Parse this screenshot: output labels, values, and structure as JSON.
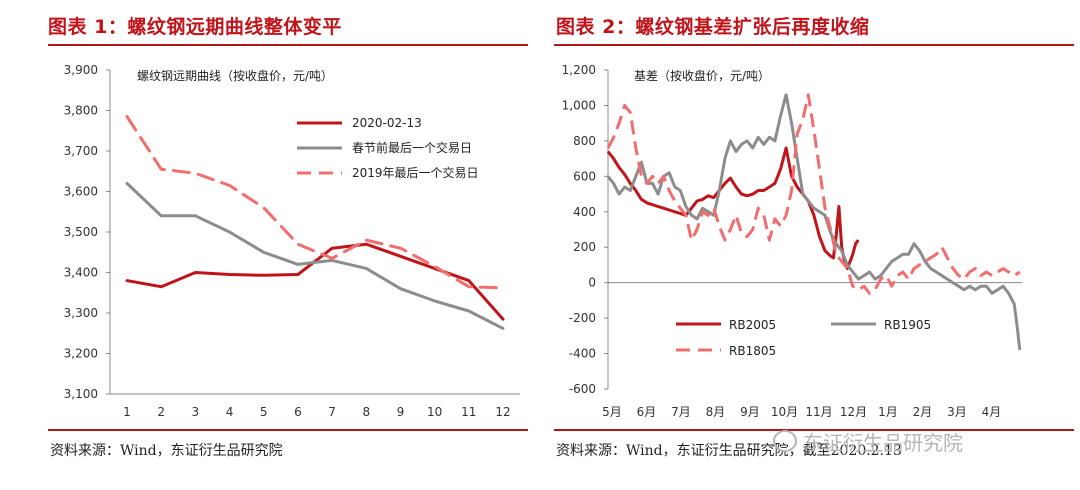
{
  "page": {
    "source_left": "资料来源：Wind，东证衍生品研究院",
    "source_right": "资料来源：Wind，东证衍生品研究院，截至2020.2.13",
    "watermark": "东证衍生品研究院"
  },
  "colors": {
    "title": "#c0141b",
    "rb2005": "#c0141b",
    "rb1905": "#8c8c8c",
    "rb1805": "#f26d6d"
  },
  "chart_data": [
    {
      "type": "line",
      "title": "图表 1：螺纹钢远期曲线整体变平",
      "unit_label": "螺纹钢远期曲线（按收盘价，元/吨）",
      "categories": [
        "1",
        "2",
        "3",
        "4",
        "5",
        "6",
        "7",
        "8",
        "9",
        "10",
        "11",
        "12"
      ],
      "ylim": [
        3100,
        3900
      ],
      "yticks": [
        3100,
        3200,
        3300,
        3400,
        3500,
        3600,
        3700,
        3800,
        3900
      ],
      "ytick_labels": [
        "3,100",
        "3,200",
        "3,300",
        "3,400",
        "3,500",
        "3,600",
        "3,700",
        "3,800",
        "3,900"
      ],
      "grid": false,
      "legend_position": "top-right",
      "series": [
        {
          "name": "2020-02-13",
          "color": "#c0141b",
          "dash": "solid",
          "values": [
            3380,
            3365,
            3400,
            3395,
            3393,
            3395,
            3460,
            3470,
            3440,
            3410,
            3380,
            3285
          ]
        },
        {
          "name": "春节前最后一个交易日",
          "color": "#8c8c8c",
          "dash": "solid",
          "values": [
            3620,
            3540,
            3540,
            3500,
            3450,
            3420,
            3430,
            3410,
            3360,
            3330,
            3305,
            3262
          ]
        },
        {
          "name": "2019年最后一个交易日",
          "color": "#f26d6d",
          "dash": "dashed",
          "values": [
            3785,
            3655,
            3645,
            3615,
            3560,
            3470,
            3435,
            3480,
            3460,
            3415,
            3365,
            3362
          ]
        }
      ]
    },
    {
      "type": "line",
      "title": "图表 2：螺纹钢基差扩张后再度收缩",
      "unit_label": "基差（按收盘价，元/吨）",
      "x_tick_labels": [
        "5月",
        "6月",
        "7月",
        "8月",
        "9月",
        "10月",
        "11月",
        "12月",
        "1月",
        "2月",
        "3月",
        "4月"
      ],
      "ylim": [
        -600,
        1200
      ],
      "yticks": [
        -600,
        -400,
        -200,
        0,
        200,
        400,
        600,
        800,
        1000,
        1200
      ],
      "ytick_labels": [
        "-600",
        "-400",
        "-200",
        "0",
        "200",
        "400",
        "600",
        "800",
        "1,000",
        "1,200"
      ],
      "grid": false,
      "legend_position": "bottom-left",
      "series": [
        {
          "name": "RB2005",
          "color": "#c0141b",
          "dash": "solid",
          "x": [
            0,
            0.2,
            0.4,
            0.6,
            0.8,
            1,
            1.2,
            1.4,
            1.6,
            1.8,
            2,
            2.2,
            2.4,
            2.6,
            2.8,
            3,
            3.2,
            3.4,
            3.6,
            3.8,
            4,
            4.2,
            4.4,
            4.6,
            4.8,
            5,
            5.2,
            5.4,
            5.6,
            5.8,
            6,
            6.2,
            6.4,
            6.6,
            6.8,
            7,
            7.2,
            7.4,
            7.6,
            7.8,
            8,
            8.1,
            8.2,
            8.3,
            8.4,
            8.5,
            8.6,
            8.7,
            8.8,
            8.9,
            9
          ],
          "values": [
            740,
            700,
            650,
            610,
            560,
            520,
            470,
            450,
            440,
            430,
            420,
            410,
            400,
            390,
            380,
            420,
            460,
            470,
            490,
            480,
            520,
            560,
            590,
            540,
            500,
            490,
            500,
            520,
            520,
            540,
            560,
            640,
            760,
            600,
            540,
            500,
            460,
            380,
            260,
            180,
            150,
            140,
            260,
            430,
            200,
            120,
            80,
            120,
            160,
            220,
            240
          ]
        },
        {
          "name": "RB1905",
          "color": "#8c8c8c",
          "dash": "solid",
          "x": [
            0,
            0.2,
            0.4,
            0.6,
            0.8,
            1,
            1.2,
            1.4,
            1.6,
            1.8,
            2,
            2.2,
            2.4,
            2.6,
            2.8,
            3,
            3.2,
            3.4,
            3.6,
            3.8,
            4,
            4.2,
            4.4,
            4.6,
            4.8,
            5,
            5.2,
            5.4,
            5.6,
            5.8,
            6,
            6.2,
            6.4,
            6.6,
            6.8,
            7,
            7.2,
            7.4,
            7.6,
            7.8,
            8,
            8.2,
            8.4,
            8.6,
            8.8,
            9,
            9.2,
            9.4,
            9.6,
            9.8,
            10,
            10.2,
            10.4,
            10.6,
            10.8,
            11,
            11.2,
            11.4,
            11.6,
            11.8,
            12,
            12.2,
            12.4,
            12.6,
            12.8,
            13,
            13.2,
            13.4,
            13.6,
            13.8,
            14,
            14.2,
            14.4,
            14.6,
            14.7,
            14.8
          ],
          "values": [
            600,
            560,
            500,
            540,
            520,
            600,
            680,
            560,
            560,
            500,
            600,
            620,
            540,
            520,
            430,
            380,
            360,
            420,
            400,
            380,
            520,
            700,
            800,
            740,
            780,
            800,
            760,
            820,
            780,
            820,
            800,
            940,
            1060,
            900,
            700,
            500,
            460,
            420,
            400,
            380,
            280,
            220,
            180,
            100,
            60,
            20,
            40,
            60,
            20,
            40,
            80,
            120,
            140,
            160,
            160,
            220,
            180,
            120,
            80,
            60,
            40,
            20,
            0,
            -20,
            -40,
            -20,
            -40,
            -20,
            -20,
            -60,
            -40,
            -20,
            -60,
            -120,
            -240,
            -380
          ]
        },
        {
          "name": "RB1805",
          "color": "#f26d6d",
          "dash": "dashed",
          "x": [
            0,
            0.2,
            0.4,
            0.6,
            0.8,
            1,
            1.2,
            1.4,
            1.6,
            1.8,
            2,
            2.2,
            2.4,
            2.6,
            2.8,
            3,
            3.2,
            3.4,
            3.6,
            3.8,
            4,
            4.2,
            4.4,
            4.6,
            4.8,
            5,
            5.2,
            5.4,
            5.6,
            5.8,
            6,
            6.2,
            6.4,
            6.6,
            6.8,
            7,
            7.2,
            7.4,
            7.6,
            7.8,
            8,
            8.2,
            8.4,
            8.6,
            8.8,
            9,
            9.2,
            9.4,
            9.6,
            9.8,
            10,
            10.2,
            10.4,
            10.6,
            10.8,
            11,
            11.2,
            11.4,
            11.6,
            11.8,
            12,
            12.2,
            12.4,
            12.6,
            12.8,
            13,
            13.2,
            13.4,
            13.6,
            13.8,
            14,
            14.2,
            14.4,
            14.6,
            14.8
          ],
          "values": [
            760,
            820,
            900,
            1000,
            960,
            760,
            600,
            560,
            600,
            560,
            600,
            520,
            460,
            420,
            380,
            240,
            300,
            400,
            380,
            420,
            320,
            240,
            300,
            380,
            280,
            260,
            300,
            420,
            380,
            240,
            360,
            320,
            380,
            520,
            840,
            920,
            1060,
            860,
            640,
            420,
            300,
            160,
            120,
            80,
            -20,
            -40,
            -20,
            -60,
            -40,
            20,
            40,
            -20,
            40,
            60,
            20,
            80,
            100,
            120,
            140,
            160,
            200,
            140,
            80,
            40,
            20,
            60,
            80,
            40,
            60,
            40,
            60,
            80,
            60,
            40,
            60
          ]
        }
      ]
    }
  ]
}
